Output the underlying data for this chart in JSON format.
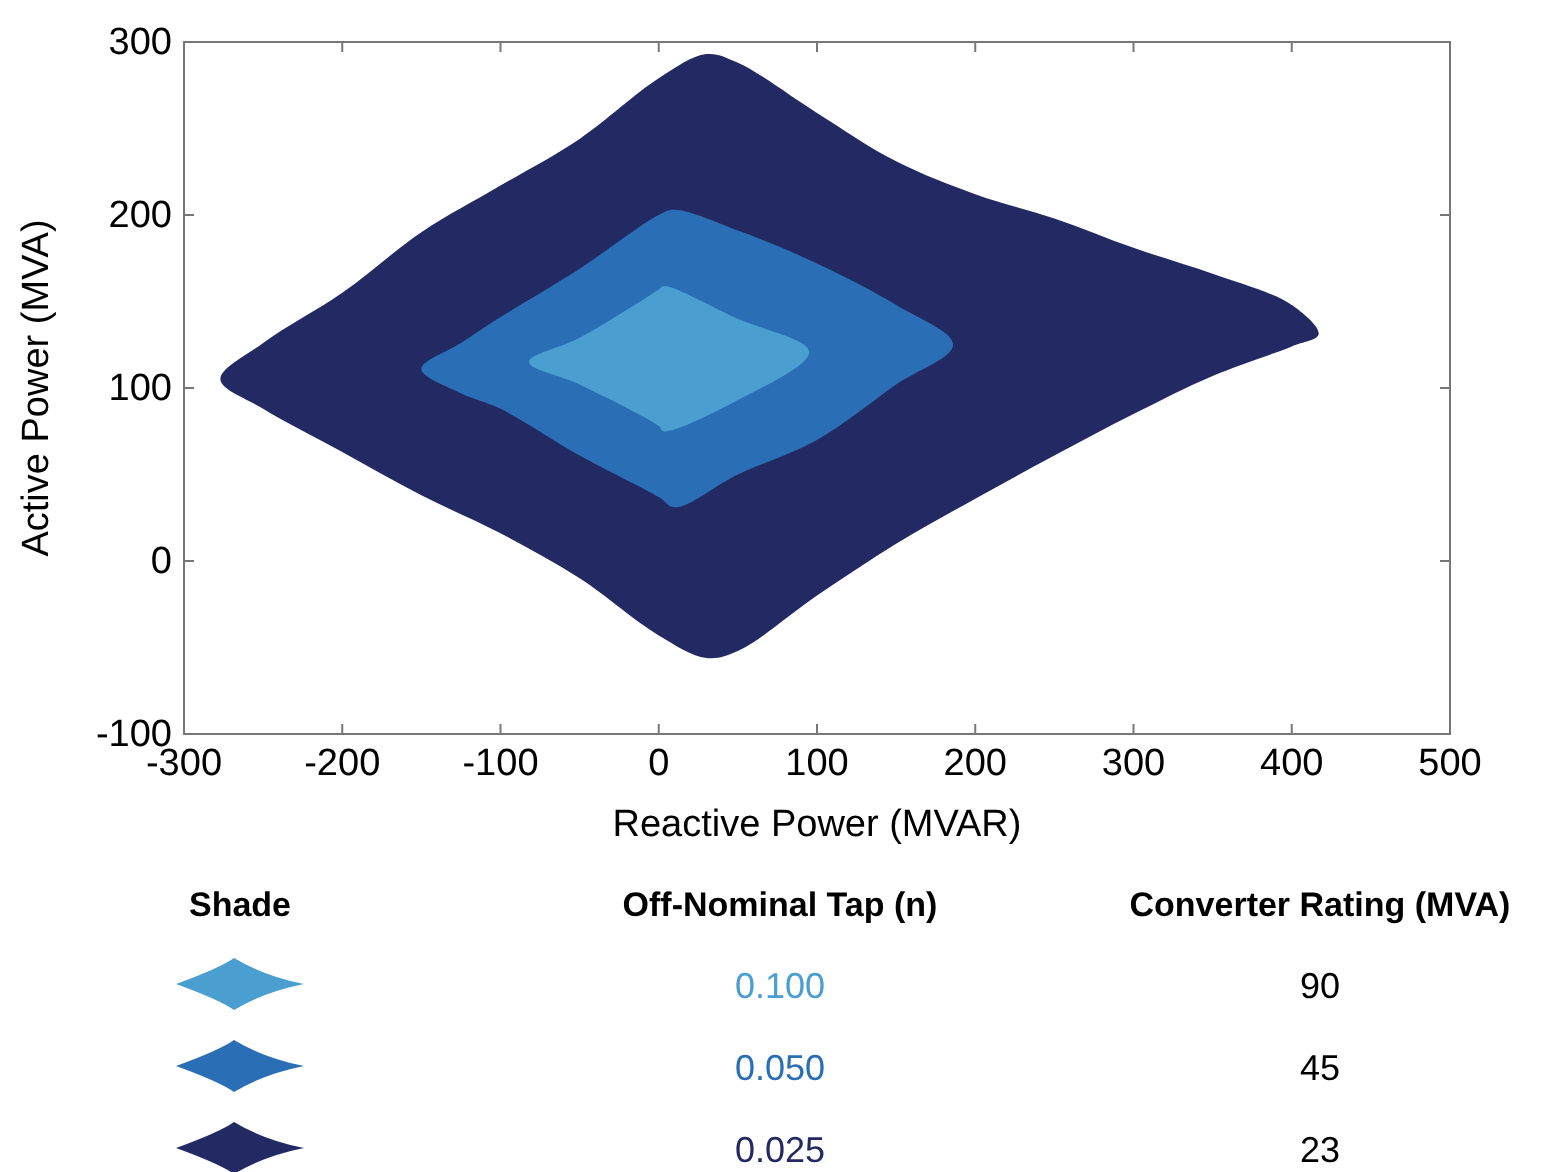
{
  "chart_data": {
    "type": "area",
    "xlabel": "Reactive Power (MVAR)",
    "ylabel": "Active Power (MVA)",
    "xlim": [
      -300,
      500
    ],
    "xticks": [
      -300,
      -200,
      -100,
      0,
      100,
      200,
      300,
      400,
      500
    ],
    "ylim": [
      -100,
      300
    ],
    "yticks": [
      -100,
      0,
      100,
      200,
      300
    ],
    "legend": "bottom",
    "legend_title": "Shade",
    "annotations": [
      "Off-Nominal Tap (n)",
      "Converter Rating (MVA)",
      "90",
      "45",
      "23"
    ],
    "series": [
      {
        "name": "0.025",
        "color": "#232a63",
        "x": [
          -277,
          -250,
          -200,
          -150,
          -100,
          -50,
          0,
          30,
          50,
          100,
          150,
          200,
          250,
          300,
          350,
          400,
          417,
          400,
          350,
          300,
          250,
          200,
          150,
          100,
          50,
          30,
          0,
          -50,
          -100,
          -150,
          -200,
          -250
        ],
        "values": [
          105,
          126,
          155,
          190,
          217,
          244,
          279,
          293,
          288,
          259,
          231,
          212,
          198,
          181,
          166,
          148,
          131,
          124,
          107,
          85,
          61,
          36,
          10,
          -20,
          -52,
          -56,
          -43,
          -10,
          16,
          38,
          63,
          88
        ]
      },
      {
        "name": "0.050",
        "color": "#2a6fb5",
        "x": [
          -150,
          -125,
          -100,
          -50,
          0,
          10,
          50,
          100,
          150,
          186,
          150,
          100,
          50,
          10,
          0,
          -50,
          -100,
          -125
        ],
        "values": [
          111,
          126,
          141,
          169,
          200,
          203,
          191,
          172,
          148,
          125,
          102,
          70,
          50,
          31,
          37,
          61,
          88,
          97
        ]
      },
      {
        "name": "0.100",
        "color": "#4a9fd0",
        "x": [
          -82,
          -50,
          0,
          3,
          50,
          95,
          50,
          3,
          0,
          -50
        ],
        "values": [
          115,
          129,
          157,
          159,
          140,
          121,
          93,
          75,
          78,
          102
        ]
      }
    ]
  }
}
